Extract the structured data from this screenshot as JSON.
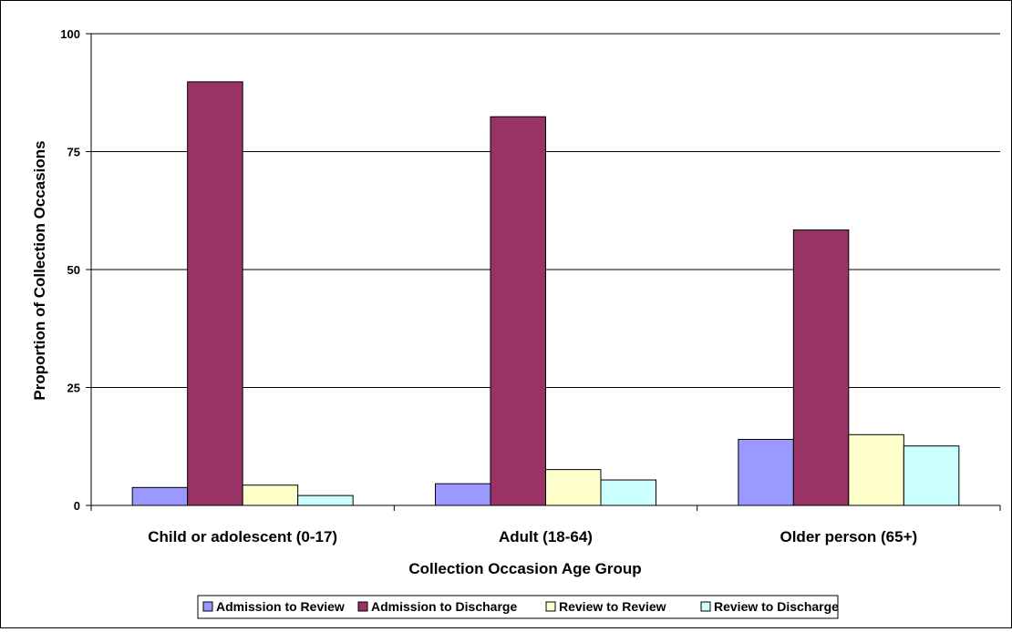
{
  "chart_data": {
    "type": "bar",
    "title": "",
    "xlabel": "Collection Occasion Age Group",
    "ylabel": "Proportion of Collection Occasions",
    "ylim": [
      0,
      100
    ],
    "yticks": [
      0,
      25,
      50,
      75,
      100
    ],
    "grid": true,
    "legend_position": "bottom",
    "categories": [
      "Child or adolescent (0-17)",
      "Adult (18-64)",
      "Older person (65+)"
    ],
    "series": [
      {
        "name": "Admission to Review",
        "color": "#9999FF",
        "values": [
          3.8,
          4.6,
          14.0
        ]
      },
      {
        "name": "Admission to Discharge",
        "color": "#993366",
        "values": [
          89.8,
          82.4,
          58.4
        ]
      },
      {
        "name": "Review to Review",
        "color": "#FFFFCC",
        "values": [
          4.3,
          7.6,
          15.0
        ]
      },
      {
        "name": "Review to Discharge",
        "color": "#CCFFFF",
        "values": [
          2.1,
          5.4,
          12.6
        ]
      }
    ]
  }
}
